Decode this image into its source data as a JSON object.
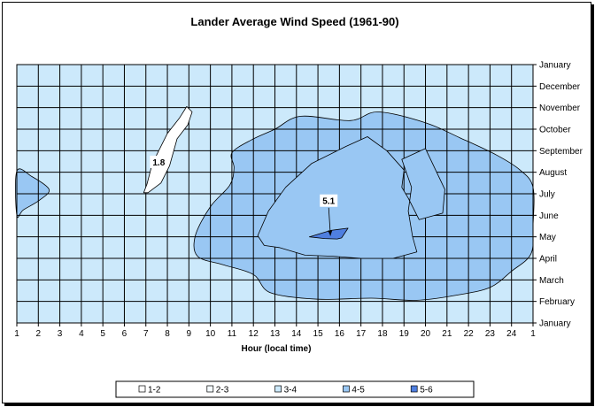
{
  "chart_data": {
    "type": "contour",
    "title": "Lander Average Wind Speed (1961-90)",
    "xlabel": "Hour (local time)",
    "ylabel": "",
    "x_tick_labels": [
      "1",
      "2",
      "3",
      "4",
      "5",
      "6",
      "7",
      "8",
      "9",
      "10",
      "11",
      "12",
      "13",
      "14",
      "15",
      "16",
      "17",
      "18",
      "19",
      "20",
      "21",
      "22",
      "23",
      "24",
      "1"
    ],
    "y_tick_labels": [
      "January",
      "February",
      "March",
      "April",
      "May",
      "June",
      "July",
      "August",
      "September",
      "October",
      "November",
      "December",
      "January"
    ],
    "legend": {
      "position": "bottom",
      "items": [
        {
          "label": "1-2",
          "color": "#ffffff"
        },
        {
          "label": "2-3",
          "color": "#f4fbff"
        },
        {
          "label": "3-4",
          "color": "#cce9fb"
        },
        {
          "label": "4-5",
          "color": "#99c7f3"
        },
        {
          "label": "5-6",
          "color": "#4f7fe0"
        }
      ]
    },
    "base_band": "3-4",
    "regions": [
      {
        "band": "1-2",
        "points": [
          [
            6.9,
            6.05
          ],
          [
            7.05,
            6.45
          ],
          [
            7.3,
            7.4
          ],
          [
            7.6,
            8.0
          ],
          [
            8.0,
            8.8
          ],
          [
            8.55,
            9.5
          ],
          [
            8.9,
            10.05
          ],
          [
            9.15,
            9.8
          ],
          [
            8.95,
            9.2
          ],
          [
            8.45,
            8.55
          ],
          [
            8.1,
            7.3
          ],
          [
            7.7,
            6.5
          ],
          [
            7.1,
            6.05
          ]
        ]
      },
      {
        "band": "4-5",
        "points": [
          [
            12.2,
            4.05
          ],
          [
            12.7,
            5.2
          ],
          [
            13.5,
            6.3
          ],
          [
            14.7,
            7.4
          ],
          [
            16.3,
            8.2
          ],
          [
            17.3,
            8.65
          ],
          [
            18.2,
            8.0
          ],
          [
            19.0,
            7.1
          ],
          [
            18.9,
            6.3
          ],
          [
            19.2,
            5.8
          ],
          [
            19.7,
            4.8
          ],
          [
            20.8,
            5.1
          ],
          [
            20.9,
            6.2
          ],
          [
            20.0,
            8.1
          ],
          [
            18.9,
            7.6
          ],
          [
            19.35,
            6.3
          ],
          [
            19.2,
            5.2
          ],
          [
            19.4,
            4.0
          ],
          [
            19.6,
            3.3
          ],
          [
            18.5,
            3.0
          ],
          [
            17.0,
            3.0
          ],
          [
            15.7,
            3.1
          ],
          [
            14.4,
            3.15
          ],
          [
            13.2,
            3.5
          ],
          [
            12.5,
            3.6
          ]
        ]
      },
      {
        "band": "5-6",
        "points": [
          [
            14.6,
            4.0
          ],
          [
            15.6,
            4.3
          ],
          [
            16.4,
            4.4
          ],
          [
            16.1,
            3.95
          ],
          [
            15.9,
            3.9
          ],
          [
            15.3,
            3.92
          ]
        ]
      }
    ],
    "labels": [
      {
        "text": "1.8",
        "x": 7.6,
        "y": 7.4
      },
      {
        "text": "5.1",
        "x": 15.5,
        "y": 5.6
      }
    ]
  }
}
